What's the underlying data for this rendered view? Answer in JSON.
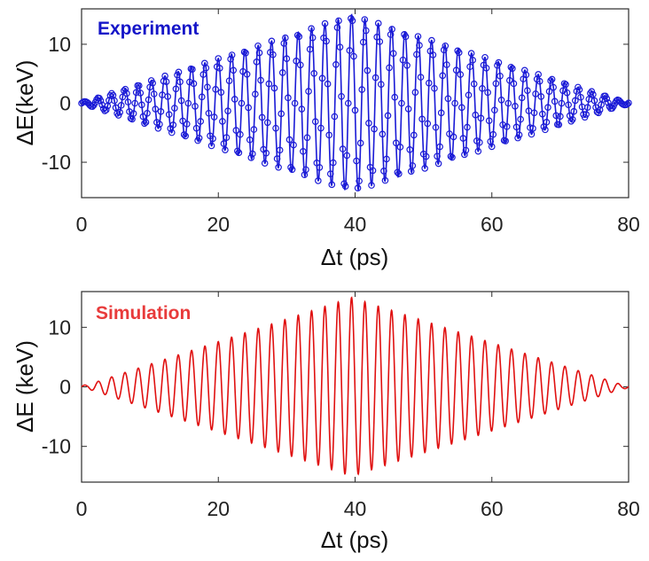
{
  "chart_data": [
    {
      "type": "line",
      "title": "Experiment",
      "title_color": "#1515c8",
      "xlabel": "Δt (ps)",
      "ylabel": "ΔE(keV)",
      "xlim": [
        0,
        80
      ],
      "ylim": [
        -16,
        16
      ],
      "xticks": [
        0,
        20,
        40,
        60,
        80
      ],
      "xtick_labels": [
        "0",
        "20",
        "40",
        "60",
        "80"
      ],
      "yticks": [
        -10,
        0,
        10
      ],
      "ytick_labels": [
        "-10",
        "0",
        "10"
      ],
      "grid": false,
      "markers": "open circles",
      "series": [
        {
          "color": "#1a1ad6",
          "waveform": {
            "period_ps": 1.95,
            "envelope_peak_ps": 39.5,
            "peak_amplitude_keV": 15,
            "envelope_start_ps": 0,
            "envelope_end_ps": 80
          }
        }
      ]
    },
    {
      "type": "line",
      "title": "Simulation",
      "title_color": "#e83b3b",
      "xlabel": "Δt (ps)",
      "ylabel": "ΔE (keV)",
      "xlim": [
        0,
        80
      ],
      "ylim": [
        -16,
        16
      ],
      "xticks": [
        0,
        20,
        40,
        60,
        80
      ],
      "xtick_labels": [
        "0",
        "20",
        "40",
        "60",
        "80"
      ],
      "yticks": [
        -10,
        0,
        10
      ],
      "ytick_labels": [
        "-10",
        "0",
        "10"
      ],
      "grid": false,
      "series": [
        {
          "color": "#e01010",
          "waveform": {
            "period_ps": 1.95,
            "envelope_peak_ps": 39.5,
            "peak_amplitude_keV": 15,
            "envelope_start_ps": 0,
            "envelope_end_ps": 80
          }
        }
      ]
    }
  ]
}
